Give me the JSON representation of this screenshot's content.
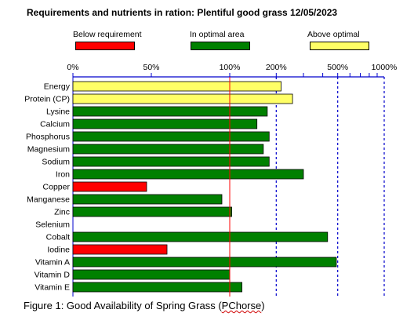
{
  "chart_data": {
    "type": "bar",
    "orientation": "horizontal",
    "title": "Requirements and nutrients in ration: Plentiful good grass 12/05/2023",
    "x_scale": "log-ratio",
    "x_ticks": [
      "0%",
      "50%",
      "100%",
      "200%",
      "500%",
      "1000%"
    ],
    "x_tick_values": [
      0,
      50,
      100,
      200,
      500,
      1000
    ],
    "reference_line_value": 100,
    "legend": [
      {
        "label": "Below requirement",
        "color": "#ff0000"
      },
      {
        "label": "In optimal area",
        "color": "#008000"
      },
      {
        "label": "Above optimal",
        "color": "#ffff66"
      }
    ],
    "categories": [
      "Energy",
      "Protein (CP)",
      "Lysine",
      "Calcium",
      "Phosphorus",
      "Magnesium",
      "Sodium",
      "Iron",
      "Copper",
      "Manganese",
      "Zinc",
      "Selenium",
      "Cobalt",
      "Iodine",
      "Vitamin A",
      "Vitamin D",
      "Vitamin E"
    ],
    "values": [
      215,
      255,
      175,
      150,
      180,
      165,
      180,
      300,
      47,
      95,
      103,
      0,
      430,
      60,
      490,
      100,
      120
    ],
    "status": [
      "above",
      "above",
      "optimal",
      "optimal",
      "optimal",
      "optimal",
      "optimal",
      "optimal",
      "below",
      "optimal",
      "optimal",
      "none",
      "optimal",
      "below",
      "optimal",
      "optimal",
      "optimal"
    ],
    "grid": true
  },
  "caption": {
    "prefix": "Figure 1: Good Availability of Spring Grass (",
    "squiggle": "PChorse",
    "suffix": ")"
  }
}
